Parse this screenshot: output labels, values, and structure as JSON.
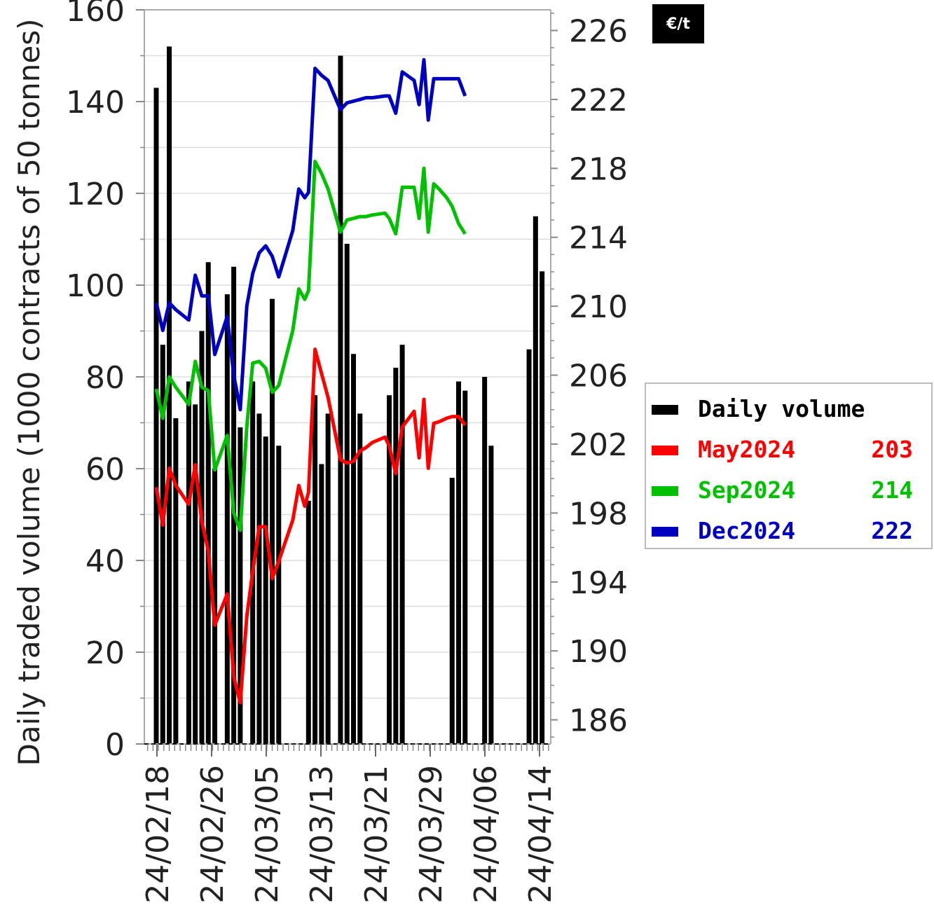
{
  "chart_data": {
    "type": "bar+line",
    "ylabel_left": "Daily traded volume (1000 contracts of 50 tonnes)",
    "ylabel_right_unit": "€/t",
    "left_axis": {
      "ylim": [
        0,
        160
      ],
      "ticks": [
        0,
        20,
        40,
        60,
        80,
        100,
        120,
        140,
        160
      ]
    },
    "right_axis": {
      "ylim": [
        184.6,
        227.2
      ],
      "ticks": [
        186,
        190,
        194,
        198,
        202,
        206,
        210,
        214,
        218,
        222,
        226
      ]
    },
    "x_tick_labels": [
      "24/02/18",
      "24/02/26",
      "24/03/05",
      "24/03/13",
      "24/03/21",
      "24/03/29",
      "24/04/06",
      "24/04/14"
    ],
    "volume": {
      "name": "Daily volume",
      "color": "#000000",
      "x": [
        2.2,
        3.4,
        4.6,
        5.8,
        8.2,
        9.4,
        10.6,
        11.8,
        13.0,
        15.3,
        16.5,
        17.7,
        20.0,
        21.2,
        22.4,
        23.6,
        24.8,
        30.3,
        31.5,
        32.7,
        33.9,
        36.2,
        37.4,
        38.6,
        39.8,
        40.9,
        42.1,
        45.2,
        46.4,
        47.6,
        56.8,
        58.0,
        59.2,
        62.8,
        64.0,
        65.2,
        66.4,
        67.6,
        71.0,
        72.2,
        73.4
      ],
      "values": [
        143,
        87,
        152,
        71,
        79,
        74,
        90,
        105,
        60,
        98,
        104,
        69,
        79,
        72,
        67,
        97,
        65,
        53,
        76,
        61,
        72,
        150,
        109,
        85,
        72,
        0,
        0,
        76,
        82,
        87,
        58,
        79,
        77,
        80,
        65,
        0,
        0,
        0,
        86,
        115,
        103
      ]
    },
    "series": [
      {
        "name": "May2024",
        "last": "203",
        "color": "#ff0000",
        "x": [
          2.2,
          3.4,
          4.6,
          5.8,
          8.2,
          9.4,
          10.6,
          11.8,
          13.0,
          15.3,
          16.5,
          17.7,
          18.9,
          20.0,
          21.2,
          22.4,
          23.6,
          24.8,
          27.4,
          28.5,
          29.6,
          30.3,
          31.5,
          32.7,
          33.9,
          36.2,
          37.4,
          38.6,
          39.8,
          40.9,
          42.1,
          44.4,
          45.2,
          46.4,
          47.6,
          49.8,
          50.7,
          51.6,
          52.4,
          53.4,
          54.4,
          55.8,
          56.8,
          58.0,
          59.2
        ],
        "values": [
          199.5,
          197.3,
          200.6,
          199.6,
          198.5,
          200.8,
          197.5,
          195.8,
          191.5,
          193.3,
          188.5,
          187.0,
          192.0,
          194.6,
          197.2,
          197.2,
          194.2,
          195.2,
          197.6,
          199.6,
          198.4,
          199.2,
          207.5,
          206.1,
          204.7,
          201.1,
          200.9,
          201.0,
          201.6,
          201.8,
          202.1,
          202.4,
          201.9,
          200.3,
          203.0,
          203.9,
          201.2,
          204.6,
          200.6,
          203.2,
          203.3,
          203.5,
          203.6,
          203.6,
          203.1
        ],
        "label_positions": "none"
      },
      {
        "name": "Sep2024",
        "last": "214",
        "color": "#00c000",
        "x": [
          2.2,
          3.4,
          4.6,
          5.8,
          8.2,
          9.4,
          10.6,
          11.8,
          13.0,
          15.3,
          16.5,
          17.7,
          18.9,
          20.0,
          21.2,
          22.4,
          23.6,
          24.8,
          27.4,
          28.5,
          29.6,
          30.3,
          31.5,
          32.7,
          33.9,
          36.2,
          37.4,
          38.6,
          39.8,
          40.9,
          42.1,
          44.4,
          45.2,
          46.4,
          47.6,
          49.8,
          50.7,
          51.6,
          52.4,
          53.4,
          54.4,
          55.8,
          56.8,
          58.0,
          59.2
        ],
        "values": [
          205.2,
          203.5,
          205.9,
          205.3,
          204.3,
          206.8,
          205.3,
          205.1,
          200.5,
          202.5,
          198.0,
          197.0,
          203.0,
          206.7,
          206.8,
          206.4,
          205.0,
          205.4,
          208.6,
          211.0,
          210.4,
          210.9,
          218.4,
          217.7,
          216.8,
          214.3,
          215.0,
          215.1,
          215.2,
          215.2,
          215.3,
          215.4,
          215.1,
          214.2,
          216.9,
          216.9,
          215.1,
          218.0,
          214.3,
          217.1,
          216.8,
          216.3,
          215.8,
          214.8,
          214.2
        ],
        "label_positions": "none"
      },
      {
        "name": "Dec2024",
        "last": "222",
        "color": "#0000c0",
        "x": [
          2.2,
          3.4,
          4.6,
          5.8,
          8.2,
          9.4,
          10.6,
          11.8,
          13.0,
          15.3,
          16.5,
          17.7,
          18.9,
          20.0,
          21.2,
          22.4,
          23.6,
          24.8,
          27.4,
          28.5,
          29.6,
          30.3,
          31.5,
          32.7,
          33.9,
          36.2,
          37.4,
          38.6,
          39.8,
          40.9,
          42.1,
          44.4,
          45.2,
          46.4,
          47.6,
          49.8,
          50.7,
          51.6,
          52.4,
          53.4,
          54.4,
          55.8,
          56.8,
          58.0,
          59.2
        ],
        "values": [
          210.2,
          208.6,
          210.2,
          209.8,
          209.2,
          211.8,
          210.6,
          210.6,
          207.2,
          209.4,
          206.0,
          204.0,
          210.0,
          211.9,
          213.1,
          213.5,
          212.9,
          211.7,
          214.4,
          216.8,
          216.3,
          216.6,
          223.8,
          223.4,
          223.1,
          221.4,
          221.8,
          221.9,
          222.0,
          222.1,
          222.1,
          222.2,
          222.2,
          221.2,
          223.6,
          223.1,
          221.7,
          224.3,
          220.8,
          223.2,
          223.2,
          223.2,
          223.2,
          223.2,
          222.2
        ],
        "label_positions": "none"
      }
    ],
    "grid": true,
    "legend": "right"
  }
}
